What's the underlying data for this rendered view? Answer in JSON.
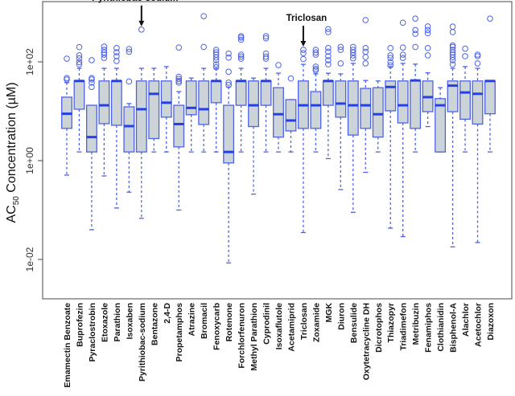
{
  "chart_data": {
    "type": "box",
    "title": "",
    "xlabel": "",
    "ylabel": "AC50 Concentration (µM)",
    "ylabel_main": "AC",
    "ylabel_sub": "50",
    "ylabel_rest": " Concentration (µM)",
    "yscale": "log10",
    "ylim": [
      0.0005,
      1200
    ],
    "yticks": [
      {
        "value": 100,
        "label": "1e+02"
      },
      {
        "value": 1,
        "label": "1e+00"
      },
      {
        "value": 0.01,
        "label": "1e-02"
      }
    ],
    "annotations": [
      {
        "text": "Pyrithiobac-sodium",
        "category": "Pyrithiobac-sodium"
      },
      {
        "text": "Triclosan",
        "category": "Triclosan"
      }
    ],
    "colors": {
      "box_fill": "#cdd4d8",
      "box_stroke": "#4d63e6",
      "median": "#2340e6",
      "outlier": "#4d63e6"
    },
    "boxes": [
      {
        "name": "Emamectin Benzoate",
        "wl": 0.51,
        "q1": 4.5,
        "med": 8.9,
        "q3": 19.3,
        "wh": 38,
        "out": [
          116,
          47,
          44
        ]
      },
      {
        "name": "Buprofezin",
        "wl": 1.5,
        "q1": 11,
        "med": 41,
        "q3": 41,
        "wh": 74,
        "out": [
          199,
          135,
          118,
          99,
          89
        ]
      },
      {
        "name": "Pyraclostrobin",
        "wl": 0.04,
        "q1": 1.5,
        "med": 3.0,
        "q3": 13.2,
        "wh": 13.2,
        "out": [
          108,
          47,
          44,
          38,
          31
        ]
      },
      {
        "name": "Etoxazole",
        "wl": 0.49,
        "q1": 5.6,
        "med": 13.2,
        "q3": 41,
        "wh": 74,
        "out": [
          203,
          175,
          155,
          140,
          120
        ]
      },
      {
        "name": "Parathion",
        "wl": 0.11,
        "q1": 5.2,
        "med": 41,
        "q3": 41,
        "wh": 74,
        "out": [
          190,
          156,
          130,
          104
        ]
      },
      {
        "name": "Isoxaben",
        "wl": 0.23,
        "q1": 1.5,
        "med": 5.0,
        "q3": 12.3,
        "wh": 14.3,
        "out": [
          182,
          160,
          40
        ]
      },
      {
        "name": "Pyrithiobac-sodium",
        "wl": 0.068,
        "q1": 1.5,
        "med": 11,
        "q3": 41,
        "wh": 74,
        "out": [
          450
        ]
      },
      {
        "name": "Bentazone",
        "wl": 1.5,
        "q1": 2.8,
        "med": 22.5,
        "q3": 41,
        "wh": 74,
        "out": []
      },
      {
        "name": "2,4-D",
        "wl": 1.5,
        "q1": 7.6,
        "med": 14.9,
        "q3": 41,
        "wh": 80,
        "out": []
      },
      {
        "name": "Propetamphos",
        "wl": 0.1,
        "q1": 1.9,
        "med": 5.5,
        "q3": 13.2,
        "wh": 25,
        "out": [
          195,
          50,
          45,
          41,
          38
        ]
      },
      {
        "name": "Atrazine",
        "wl": 1.5,
        "q1": 8.5,
        "med": 11.7,
        "q3": 41,
        "wh": 47,
        "out": []
      },
      {
        "name": "Bromacil",
        "wl": 1.5,
        "q1": 5.4,
        "med": 11,
        "q3": 41,
        "wh": 74,
        "out": [
          840,
          200
        ]
      },
      {
        "name": "Fenoxycarb",
        "wl": 1.5,
        "q1": 14.9,
        "med": 41,
        "q3": 41,
        "wh": 74,
        "out": [
          175,
          156,
          140,
          123,
          108,
          89,
          78
        ]
      },
      {
        "name": "Rotenone",
        "wl": 0.0085,
        "q1": 0.9,
        "med": 1.5,
        "q3": 13.2,
        "wh": 31,
        "out": [
          147,
          122,
          63,
          38,
          34
        ]
      },
      {
        "name": "Forchlorfenuron",
        "wl": 1.5,
        "q1": 13.2,
        "med": 41,
        "q3": 41,
        "wh": 74,
        "out": [
          330,
          310,
          280,
          140,
          128,
          116
        ]
      },
      {
        "name": "Methyl Parathion",
        "wl": 0.21,
        "q1": 4.9,
        "med": 13.2,
        "q3": 41,
        "wh": 47,
        "out": []
      },
      {
        "name": "Cyprodinil",
        "wl": 1.5,
        "q1": 13.2,
        "med": 41,
        "q3": 41,
        "wh": 74,
        "out": [
          330,
          300,
          147,
          128,
          116
        ]
      },
      {
        "name": "Isoxaflutole",
        "wl": 1.5,
        "q1": 3.0,
        "med": 8.7,
        "q3": 30,
        "wh": 59,
        "out": [
          86
        ]
      },
      {
        "name": "Acetamiprid",
        "wl": 1.5,
        "q1": 4.0,
        "med": 6.5,
        "q3": 17.2,
        "wh": 17.2,
        "out": [
          46
        ]
      },
      {
        "name": "Triclosan",
        "wl": 0.035,
        "q1": 4.5,
        "med": 13.2,
        "q3": 41,
        "wh": 89,
        "out": [
          175,
          150,
          114
        ]
      },
      {
        "name": "Zoxamide",
        "wl": 1.5,
        "q1": 4.5,
        "med": 13.2,
        "q3": 25,
        "wh": 57,
        "out": [
          175,
          155,
          140,
          80,
          72,
          67
        ]
      },
      {
        "name": "MGK",
        "wl": 1.1,
        "q1": 13.2,
        "med": 41,
        "q3": 41,
        "wh": 59,
        "out": [
          460,
          400,
          190,
          160,
          130,
          108,
          89
        ]
      },
      {
        "name": "Diuron",
        "wl": 0.26,
        "q1": 7.6,
        "med": 14.3,
        "q3": 41,
        "wh": 57,
        "out": [
          200,
          175,
          93
        ]
      },
      {
        "name": "Bensulide",
        "wl": 0.09,
        "q1": 3.3,
        "med": 13.2,
        "q3": 41,
        "wh": 93,
        "out": [
          200,
          175,
          155,
          135,
          118
        ]
      },
      {
        "name": "Oxytetracycline DH",
        "wl": 0.58,
        "q1": 4.5,
        "med": 13.2,
        "q3": 29,
        "wh": 42,
        "out": [
          700,
          190,
          160,
          125,
          93
        ]
      },
      {
        "name": "Dicrotophos",
        "wl": 1.5,
        "q1": 3.0,
        "med": 8.7,
        "q3": 30,
        "wh": 41,
        "out": []
      },
      {
        "name": "Thiazopyr",
        "wl": 0.043,
        "q1": 10.2,
        "med": 31,
        "q3": 41,
        "wh": 80,
        "out": [
          190,
          135,
          120,
          98,
          85
        ]
      },
      {
        "name": "Triadimefon",
        "wl": 0.029,
        "q1": 5.8,
        "med": 13.2,
        "q3": 41,
        "wh": 93,
        "out": [
          620,
          195,
          140,
          120
        ]
      },
      {
        "name": "Metribuzin",
        "wl": 1.5,
        "q1": 4.5,
        "med": 42,
        "q3": 42,
        "wh": 90,
        "out": [
          750,
          440,
          370,
          200
        ]
      },
      {
        "name": "Fenamiphos",
        "wl": 4.9,
        "q1": 9.8,
        "med": 19.3,
        "q3": 41,
        "wh": 60,
        "out": [
          520,
          440,
          380,
          190,
          135
        ]
      },
      {
        "name": "Clothianidin",
        "wl": 1.5,
        "q1": 1.5,
        "med": 13.2,
        "q3": 18,
        "wh": 30,
        "out": []
      },
      {
        "name": "Bisphenol-A",
        "wl": 0.018,
        "q1": 9.8,
        "med": 33,
        "q3": 41,
        "wh": 74,
        "out": [
          515,
          400,
          215,
          200,
          175,
          155,
          140,
          123,
          108,
          89
        ]
      },
      {
        "name": "Alachlor",
        "wl": 1.5,
        "q1": 6.9,
        "med": 24,
        "q3": 41,
        "wh": 80,
        "out": [
          185,
          130
        ]
      },
      {
        "name": "Acetochlor",
        "wl": 0.022,
        "q1": 5.5,
        "med": 22.5,
        "q3": 41,
        "wh": 74,
        "out": [
          140,
          130,
          93
        ]
      },
      {
        "name": "Diazoxon",
        "wl": 1.5,
        "q1": 8.9,
        "med": 41,
        "q3": 41,
        "wh": 41,
        "out": [
          750
        ]
      }
    ]
  }
}
